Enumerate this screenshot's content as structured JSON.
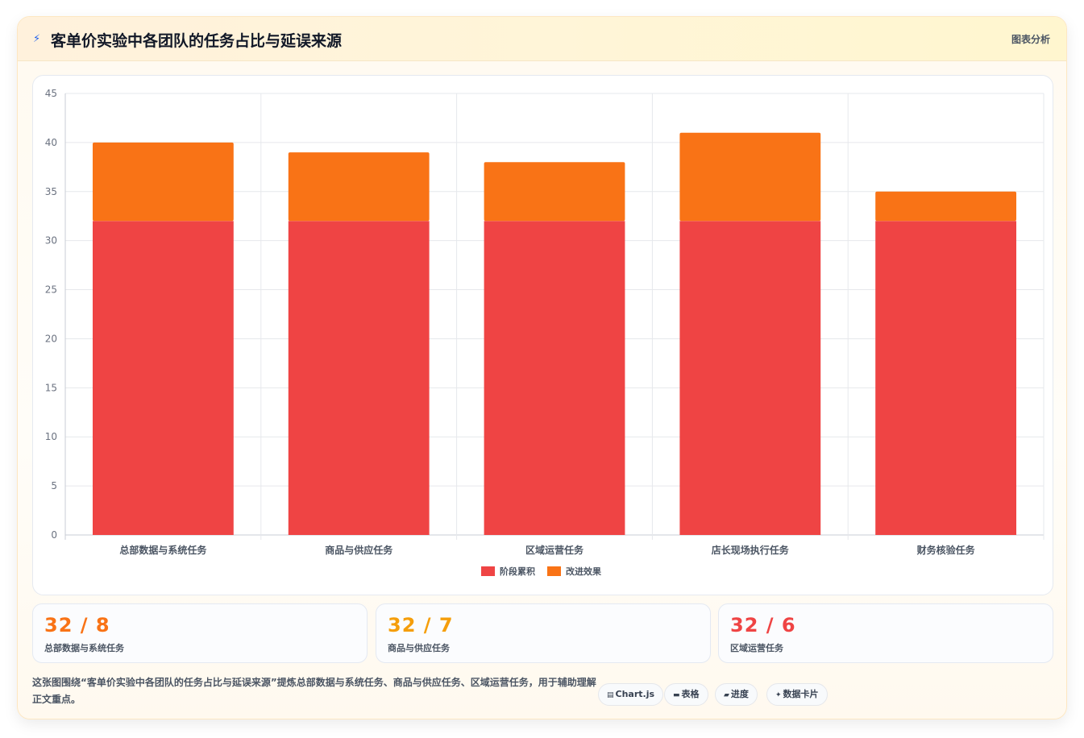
{
  "header": {
    "icon": "lightning-icon",
    "title": "客单价实验中各团队的任务占比与延误来源",
    "link_label": "图表分析"
  },
  "chart_data": {
    "type": "bar",
    "stacked": true,
    "categories": [
      "总部数据与系统任务",
      "商品与供应任务",
      "区域运营任务",
      "店长现场执行任务",
      "财务核验任务"
    ],
    "series": [
      {
        "name": "阶段累积",
        "values": [
          32,
          32,
          32,
          32,
          32
        ],
        "color": "#ef4444"
      },
      {
        "name": "改进效果",
        "values": [
          8,
          7,
          6,
          9,
          3
        ],
        "color": "#f97316"
      }
    ],
    "ylim": [
      0,
      45
    ],
    "yticks": [
      0,
      5,
      10,
      15,
      20,
      25,
      30,
      35,
      40,
      45
    ],
    "grid": true,
    "legend": "bottom"
  },
  "stats": [
    {
      "value": "32 / 8",
      "label": "总部数据与系统任务",
      "color": "#f97316"
    },
    {
      "value": "32 / 7",
      "label": "商品与供应任务",
      "color": "#f59e0b"
    },
    {
      "value": "32 / 6",
      "label": "区域运营任务",
      "color": "#ef4444"
    }
  ],
  "description": "这张图围绕“客单价实验中各团队的任务占比与延误来源”提炼总部数据与系统任务、商品与供应任务、区域运营任务，用于辅助理解正文重点。",
  "chips": [
    {
      "icon": "chart-icon",
      "glyph": "▤",
      "label": "Chart.js"
    },
    {
      "icon": "table-icon",
      "glyph": "▬",
      "label": "表格"
    },
    {
      "icon": "progress-icon",
      "glyph": "▰",
      "label": "进度"
    },
    {
      "icon": "sparkle-icon",
      "glyph": "✦",
      "label": "数据卡片"
    }
  ]
}
